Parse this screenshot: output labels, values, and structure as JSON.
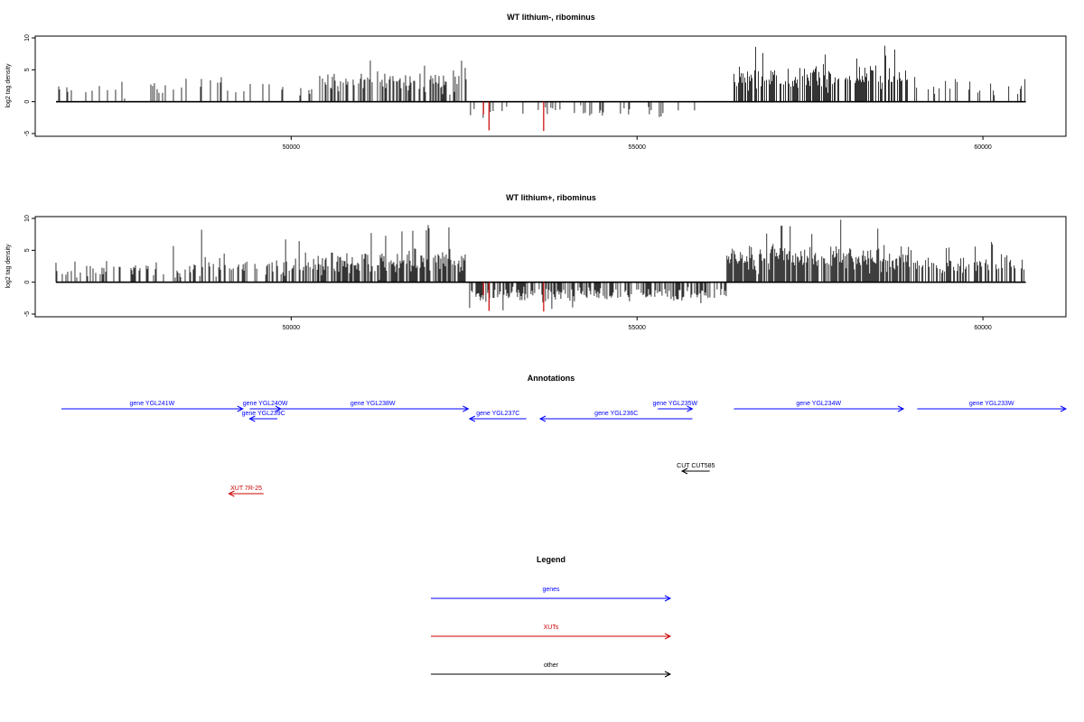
{
  "chart_data": [
    {
      "type": "bar",
      "title": "WT lithium-, ribominus",
      "xlabel": "",
      "ylabel": "log2 tag density",
      "xlim": [
        46300,
        61200
      ],
      "ylim": [
        -5,
        10
      ],
      "xticks": [
        50000,
        55000,
        60000
      ],
      "yticks": [
        -5,
        0,
        5,
        10
      ],
      "series": [
        {
          "label_color": "#000000",
          "segments": [
            {
              "from": 46600,
              "to": 50400,
              "density": 0.14,
              "mean": 2.2,
              "sd": 0.9,
              "max": 4.5,
              "sign": 1
            },
            {
              "from": 50400,
              "to": 52540,
              "density": 0.55,
              "mean": 3.0,
              "sd": 1.3,
              "max": 7.0,
              "sign": 1
            },
            {
              "from": 52580,
              "to": 55900,
              "density": 0.13,
              "mean": 1.6,
              "sd": 0.7,
              "max": 4.0,
              "sign": -1
            },
            {
              "from": 56350,
              "to": 58950,
              "density": 0.65,
              "mean": 3.6,
              "sd": 1.4,
              "max": 9.0,
              "sign": 1
            },
            {
              "from": 58950,
              "to": 60620,
              "density": 0.15,
              "mean": 2.0,
              "sd": 0.8,
              "max": 4.2,
              "sign": 1
            }
          ],
          "highlights": [
            {
              "x": 52860,
              "y": -4.5,
              "color": "#cc0000"
            },
            {
              "x": 53650,
              "y": -4.6,
              "color": "#cc0000"
            },
            {
              "x": 52780,
              "y": -2.0,
              "color": "#cc0000"
            }
          ],
          "seed": 11
        }
      ]
    },
    {
      "type": "bar",
      "title": "WT lithium+, ribominus",
      "xlabel": "",
      "ylabel": "log2 tag density",
      "xlim": [
        46300,
        61200
      ],
      "ylim": [
        -5,
        10
      ],
      "xticks": [
        50000,
        55000,
        60000
      ],
      "yticks": [
        -5,
        0,
        5,
        10
      ],
      "series": [
        {
          "label_color": "#000000",
          "segments": [
            {
              "from": 46600,
              "to": 48600,
              "density": 0.35,
              "mean": 2.0,
              "sd": 0.9,
              "max": 6.5,
              "sign": 1
            },
            {
              "from": 48600,
              "to": 50400,
              "density": 0.5,
              "mean": 2.6,
              "sd": 1.2,
              "max": 8.5,
              "sign": 1
            },
            {
              "from": 50400,
              "to": 52540,
              "density": 0.75,
              "mean": 3.2,
              "sd": 1.4,
              "max": 9.0,
              "sign": 1
            },
            {
              "from": 52580,
              "to": 56300,
              "density": 0.55,
              "mean": 1.9,
              "sd": 0.8,
              "max": 4.8,
              "sign": -1
            },
            {
              "from": 56300,
              "to": 58950,
              "density": 0.85,
              "mean": 3.8,
              "sd": 1.4,
              "max": 9.8,
              "sign": 1
            },
            {
              "from": 58950,
              "to": 60620,
              "density": 0.55,
              "mean": 2.6,
              "sd": 1.1,
              "max": 6.5,
              "sign": 1
            }
          ],
          "highlights": [
            {
              "x": 52860,
              "y": -4.5,
              "color": "#cc0000"
            },
            {
              "x": 53650,
              "y": -4.6,
              "color": "#cc0000"
            },
            {
              "x": 52780,
              "y": -2.0,
              "color": "#cc0000"
            }
          ],
          "seed": 29
        }
      ]
    }
  ],
  "annotations": {
    "title": "Annotations",
    "genes": [
      {
        "label": "gene YGL241W",
        "from": 46300,
        "to": 49300,
        "row": 0,
        "strand": "+",
        "color": "#0000ff"
      },
      {
        "label": "gene YGL240W",
        "from": 49400,
        "to": 49850,
        "row": 0,
        "strand": "+",
        "color": "#0000ff"
      },
      {
        "label": "gene YGL239C",
        "from": 49400,
        "to": 49800,
        "row": 1,
        "strand": "-",
        "color": "#0000ff"
      },
      {
        "label": "gene YGL238W",
        "from": 49800,
        "to": 52560,
        "row": 0,
        "strand": "+",
        "color": "#0000ff"
      },
      {
        "label": "gene YGL237C",
        "from": 52580,
        "to": 53400,
        "row": 1,
        "strand": "-",
        "color": "#0000ff"
      },
      {
        "label": "gene YGL236C",
        "from": 53600,
        "to": 55800,
        "row": 1,
        "strand": "-",
        "color": "#0000ff"
      },
      {
        "label": "gene YGL235W",
        "from": 55300,
        "to": 55800,
        "row": 0,
        "strand": "+",
        "color": "#0000ff"
      },
      {
        "label": "gene YGL234W",
        "from": 56400,
        "to": 58850,
        "row": 0,
        "strand": "+",
        "color": "#0000ff"
      },
      {
        "label": "gene YGL233W",
        "from": 59050,
        "to": 61200,
        "row": 0,
        "strand": "+",
        "color": "#0000ff"
      }
    ],
    "other": [
      {
        "label": "CUT CUT585",
        "from": 55650,
        "to": 56050,
        "row": 3,
        "strand": "-",
        "color": "#000000"
      }
    ],
    "xuts": [
      {
        "label": "XUT 7R-25",
        "from": 49100,
        "to": 49600,
        "row": 4,
        "strand": "-",
        "color": "#cc0000"
      }
    ]
  },
  "legend": {
    "title": "Legend",
    "items": [
      {
        "label": "genes",
        "color": "#0000ff"
      },
      {
        "label": "XUTs",
        "color": "#cc0000"
      },
      {
        "label": "other",
        "color": "#000000"
      }
    ]
  }
}
